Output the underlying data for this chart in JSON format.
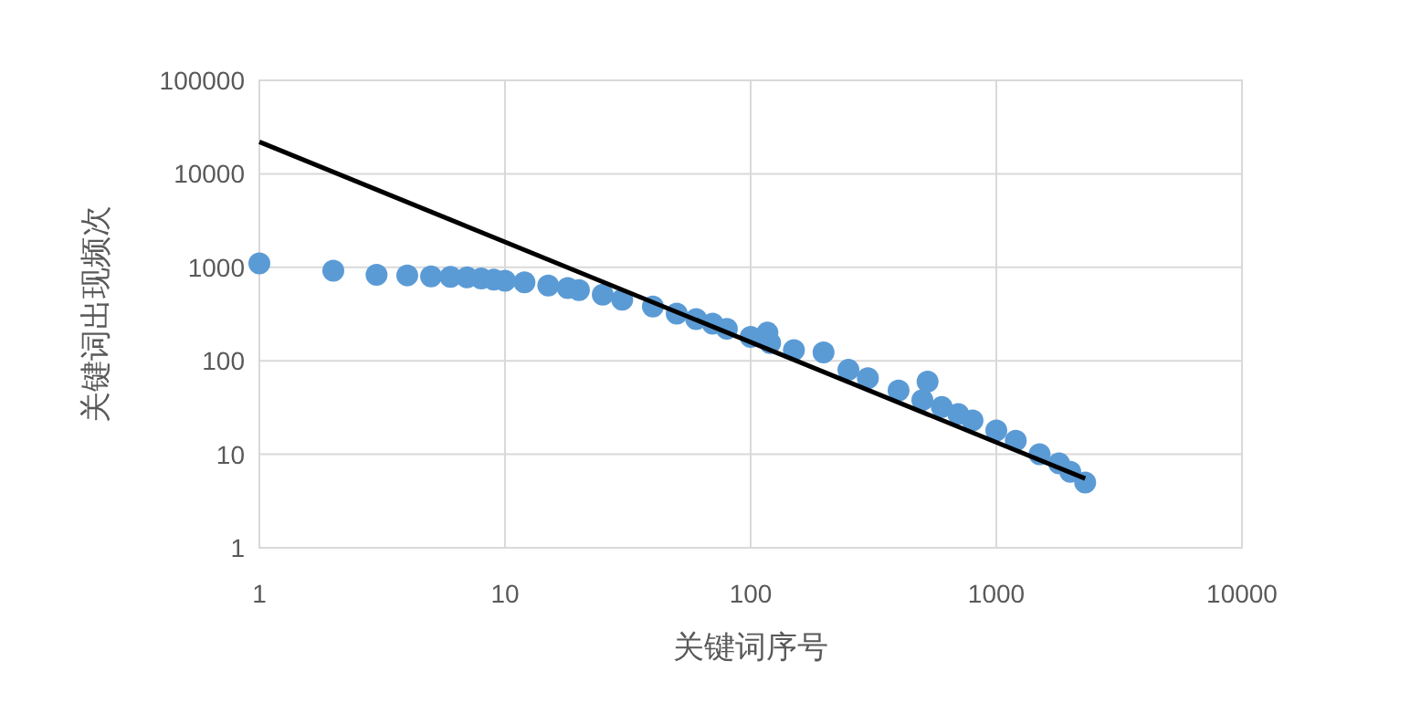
{
  "chart_data": {
    "type": "scatter",
    "xlabel": "关键词序号",
    "ylabel": "关键词出现频次",
    "log": "xy",
    "xlim": [
      1,
      10000
    ],
    "ylim": [
      1,
      100000
    ],
    "xticks": [
      1,
      10,
      100,
      1000,
      10000
    ],
    "yticks": [
      1,
      10,
      100,
      1000,
      10000,
      100000
    ],
    "grid": true,
    "series": [
      {
        "color": "#5b9bd5",
        "marker": "circle",
        "x": [
          1,
          2,
          3,
          4,
          5,
          6,
          7,
          8,
          9,
          10,
          12,
          15,
          18,
          20,
          25,
          30,
          40,
          50,
          60,
          70,
          80,
          100,
          117,
          120,
          150,
          198,
          250,
          300,
          400,
          500,
          525,
          600,
          700,
          800,
          1000,
          1200,
          1500,
          1800,
          2000,
          2300
        ],
        "values": [
          1100,
          920,
          830,
          820,
          800,
          790,
          780,
          760,
          740,
          720,
          690,
          640,
          600,
          570,
          510,
          450,
          380,
          320,
          280,
          250,
          220,
          180,
          200,
          155,
          130,
          123,
          80,
          65,
          48,
          38,
          60,
          32,
          27,
          23,
          18,
          14,
          10,
          8,
          6.5,
          5
        ]
      },
      {
        "type": "line",
        "marker": "none",
        "color": "#000000",
        "x": [
          1,
          2300
        ],
        "values": [
          22000,
          5.5
        ]
      }
    ]
  }
}
